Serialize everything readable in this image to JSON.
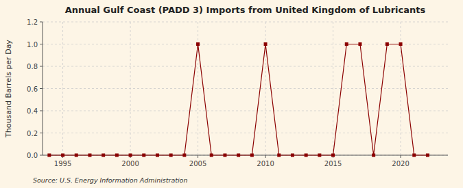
{
  "chart_data": {
    "type": "line",
    "title": "Annual Gulf Coast (PADD 3) Imports from United Kingdom of Lubricants",
    "ylabel": "Thousand Barrels per Day",
    "source": "Source: U.S. Energy Information Administration",
    "x": [
      1994,
      1995,
      1996,
      1997,
      1998,
      1999,
      2000,
      2001,
      2002,
      2003,
      2004,
      2005,
      2006,
      2007,
      2008,
      2009,
      2010,
      2011,
      2012,
      2013,
      2014,
      2015,
      2016,
      2017,
      2018,
      2019,
      2020,
      2021,
      2022
    ],
    "values": [
      0,
      0,
      0,
      0,
      0,
      0,
      0,
      0,
      0,
      0,
      0,
      1,
      0,
      0,
      0,
      0,
      1,
      0,
      0,
      0,
      0,
      0,
      1,
      1,
      0,
      1,
      1,
      0,
      0
    ],
    "color": "#8B0000",
    "marker": "square",
    "line_style": "solid",
    "xlim": [
      1993.5,
      2023.5
    ],
    "xticks": [
      1995,
      2000,
      2005,
      2010,
      2015,
      2020
    ],
    "ylim": [
      0,
      1.2
    ],
    "yticks": [
      {
        "value": 0.0,
        "label": "0.0"
      },
      0.2,
      0.4,
      0.6,
      0.8,
      {
        "value": 1.0,
        "label": "1.0"
      },
      1.2
    ],
    "grid": true
  }
}
